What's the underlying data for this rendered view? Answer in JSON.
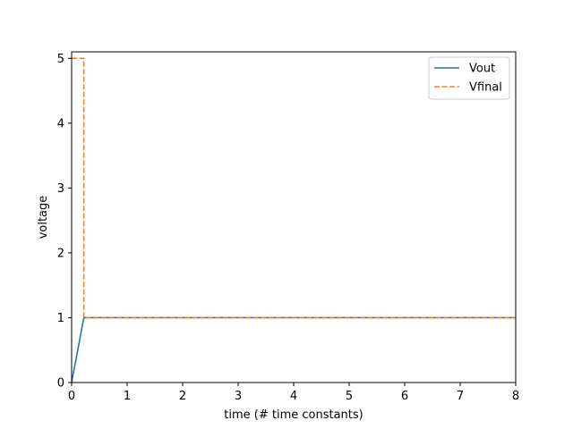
{
  "chart_data": {
    "type": "line",
    "xlabel": "time (# time constants)",
    "ylabel": "voltage",
    "xlim": [
      0,
      8
    ],
    "ylim": [
      0,
      5.1
    ],
    "xticks": [
      0,
      1,
      2,
      3,
      4,
      5,
      6,
      7,
      8
    ],
    "yticks": [
      0,
      1,
      2,
      3,
      4,
      5
    ],
    "grid": false,
    "legend_position": "top-right",
    "series": [
      {
        "name": "Vout",
        "color": "#1f77b4",
        "style": "solid",
        "x": [
          0,
          0.22,
          8
        ],
        "y": [
          0,
          1,
          1
        ]
      },
      {
        "name": "Vfinal",
        "color": "#ff7f0e",
        "style": "dashed",
        "x": [
          0,
          0.22,
          0.22,
          8
        ],
        "y": [
          5,
          5,
          1,
          1
        ]
      }
    ]
  }
}
